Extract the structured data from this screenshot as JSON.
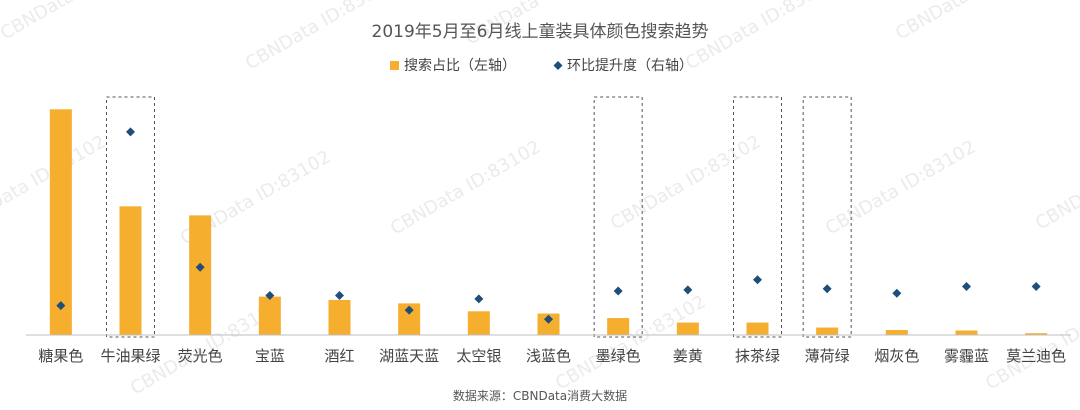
{
  "chart_data": {
    "type": "bar",
    "title": "2019年5月至6月线上童装具体颜色搜索趋势",
    "categories": [
      "糖果色",
      "牛油果绿",
      "荧光色",
      "宝蓝",
      "酒红",
      "湖蓝天蓝",
      "太空银",
      "浅蓝色",
      "墨绿色",
      "姜黄",
      "抹茶绿",
      "薄荷绿",
      "烟灰色",
      "雾霾蓝",
      "莫兰迪色"
    ],
    "series": [
      {
        "name": "搜索占比（左轴）",
        "kind": "bar",
        "axis": "left",
        "color": "#F5AE2E",
        "values": [
          100,
          57,
          53,
          17,
          15.5,
          14,
          10.5,
          9.5,
          7.5,
          5.5,
          5.5,
          3.3,
          2.2,
          2.0,
          0.8
        ]
      },
      {
        "name": "环比提升度（右轴）",
        "kind": "marker",
        "axis": "right",
        "color": "#1F4E79",
        "values": [
          13,
          90,
          30,
          17.5,
          17.5,
          11,
          16,
          7,
          19.5,
          20,
          24.5,
          20.5,
          18.5,
          21.5,
          21.5
        ]
      }
    ],
    "ylim_left": [
      0,
      105
    ],
    "ylim_right": [
      0,
      105
    ],
    "highlighted": [
      "牛油果绿",
      "墨绿色",
      "抹茶绿",
      "薄荷绿"
    ],
    "legend_position": "top-center",
    "grid": false
  },
  "source": "数据来源：CBNData消费大数据",
  "watermark": "CBNData ID:83102"
}
